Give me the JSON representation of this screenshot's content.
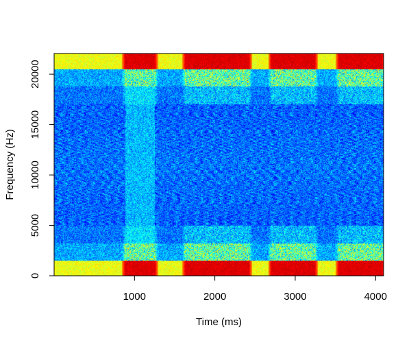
{
  "chart_data": {
    "type": "heatmap",
    "subtype": "spectrogram",
    "title": "",
    "xlabel": "Time (ms)",
    "ylabel": "Frequency (Hz)",
    "xlim": [
      0,
      4100
    ],
    "ylim": [
      0,
      22050
    ],
    "xticks": [
      {
        "value": 1000,
        "label": "1000"
      },
      {
        "value": 2000,
        "label": "2000"
      },
      {
        "value": 3000,
        "label": "3000"
      },
      {
        "value": 4000,
        "label": "4000"
      }
    ],
    "yticks": [
      {
        "value": 0,
        "label": "0"
      },
      {
        "value": 5000,
        "label": "5000"
      },
      {
        "value": 10000,
        "label": "10000"
      },
      {
        "value": 15000,
        "label": "15000"
      },
      {
        "value": 20000,
        "label": "20000"
      }
    ],
    "colormap": [
      "#00007f",
      "#0000ff",
      "#007fff",
      "#00ffff",
      "#7fff7f",
      "#ffff00",
      "#ff7f00",
      "#ff0000",
      "#7f0000"
    ],
    "grid": false,
    "legend": "none",
    "high_energy_segments_ms": [
      {
        "start": 880,
        "end": 1250
      },
      {
        "start": 1630,
        "end": 2420
      },
      {
        "start": 2700,
        "end": 3240
      },
      {
        "start": 3540,
        "end": 4080
      }
    ],
    "strong_bands_hz": [
      {
        "low": 0,
        "high": 1500
      },
      {
        "low": 20600,
        "high": 22050
      }
    ]
  }
}
